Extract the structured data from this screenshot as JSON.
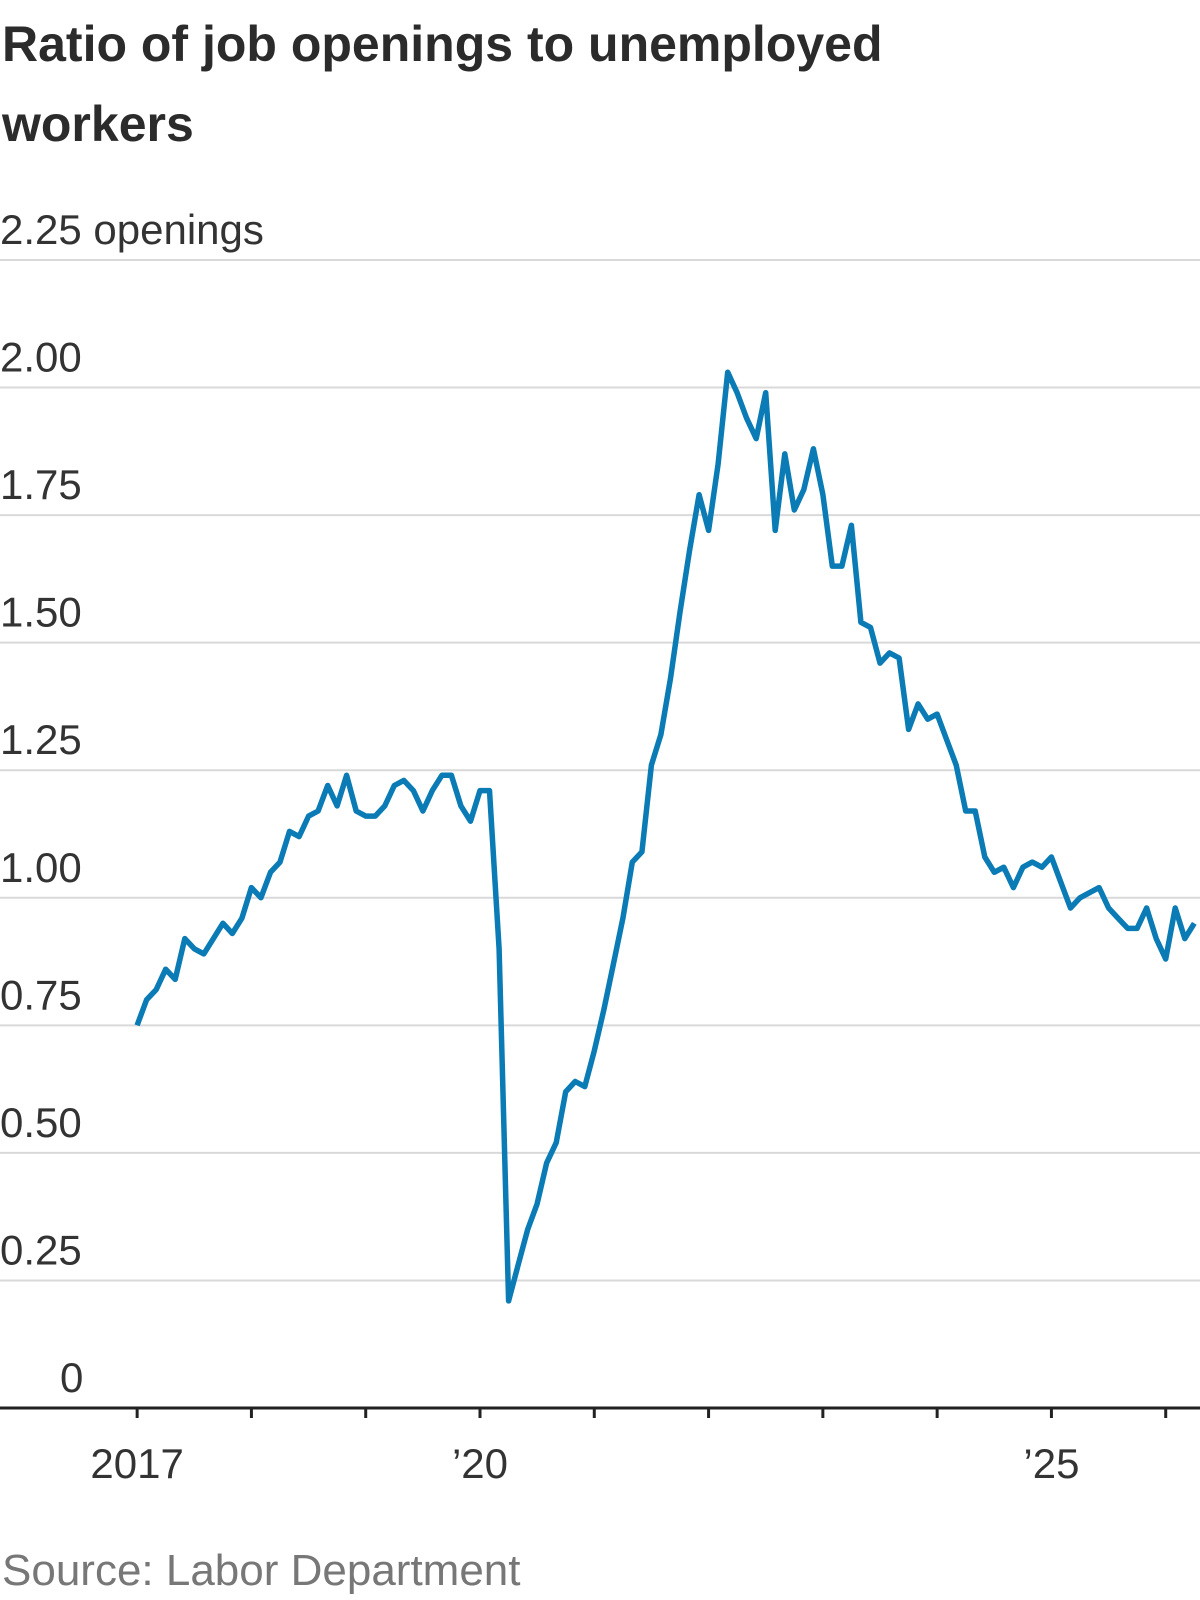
{
  "chart_data": {
    "type": "line",
    "title": "Ratio of job openings to unemployed workers",
    "source": "Source: Labor Department",
    "x": [
      2017,
      2017.083,
      2017.167,
      2017.25,
      2017.333,
      2017.417,
      2017.5,
      2017.583,
      2017.667,
      2017.75,
      2017.833,
      2017.917,
      2018,
      2018.083,
      2018.167,
      2018.25,
      2018.333,
      2018.417,
      2018.5,
      2018.583,
      2018.667,
      2018.75,
      2018.833,
      2018.917,
      2019,
      2019.083,
      2019.167,
      2019.25,
      2019.333,
      2019.417,
      2019.5,
      2019.583,
      2019.667,
      2019.75,
      2019.833,
      2019.917,
      2020,
      2020.083,
      2020.167,
      2020.25,
      2020.333,
      2020.417,
      2020.5,
      2020.583,
      2020.667,
      2020.75,
      2020.833,
      2020.917,
      2021,
      2021.083,
      2021.167,
      2021.25,
      2021.333,
      2021.417,
      2021.5,
      2021.583,
      2021.667,
      2021.75,
      2021.833,
      2021.917,
      2022,
      2022.083,
      2022.167,
      2022.25,
      2022.333,
      2022.417,
      2022.5,
      2022.583,
      2022.667,
      2022.75,
      2022.833,
      2022.917,
      2023,
      2023.083,
      2023.167,
      2023.25,
      2023.333,
      2023.417,
      2023.5,
      2023.583,
      2023.667,
      2023.75,
      2023.833,
      2023.917,
      2024,
      2024.083,
      2024.167,
      2024.25,
      2024.333,
      2024.417,
      2024.5,
      2024.583,
      2024.667,
      2024.75,
      2024.833,
      2024.917,
      2025,
      2025.083,
      2025.167,
      2025.25,
      2025.333,
      2025.417,
      2025.5,
      2025.583,
      2025.667,
      2025.75,
      2025.833,
      2025.917,
      2026,
      2026.083,
      2026.167,
      2026.25
    ],
    "series": [
      {
        "color": "#0a7bb5",
        "values": [
          0.75,
          0.8,
          0.82,
          0.86,
          0.84,
          0.92,
          0.9,
          0.89,
          0.92,
          0.95,
          0.93,
          0.96,
          1.02,
          1.0,
          1.05,
          1.07,
          1.13,
          1.12,
          1.16,
          1.17,
          1.22,
          1.18,
          1.24,
          1.17,
          1.16,
          1.16,
          1.18,
          1.22,
          1.23,
          1.21,
          1.17,
          1.21,
          1.24,
          1.24,
          1.18,
          1.15,
          1.21,
          1.21,
          0.9,
          0.21,
          0.28,
          0.35,
          0.4,
          0.48,
          0.52,
          0.62,
          0.64,
          0.63,
          0.7,
          0.78,
          0.87,
          0.96,
          1.07,
          1.09,
          1.26,
          1.32,
          1.43,
          1.56,
          1.68,
          1.79,
          1.72,
          1.85,
          2.03,
          1.99,
          1.94,
          1.9,
          1.99,
          1.72,
          1.87,
          1.76,
          1.8,
          1.88,
          1.79,
          1.65,
          1.65,
          1.73,
          1.54,
          1.53,
          1.46,
          1.48,
          1.47,
          1.33,
          1.38,
          1.35,
          1.36,
          1.31,
          1.26,
          1.17,
          1.17,
          1.08,
          1.05,
          1.06,
          1.02,
          1.06,
          1.07,
          1.06,
          1.08,
          1.03,
          0.98,
          1.0,
          1.01,
          1.02,
          0.98,
          0.96,
          0.94,
          0.94,
          0.98,
          0.92,
          0.88,
          0.98,
          0.92,
          0.95
        ]
      }
    ],
    "xlim": [
      2015.8,
      2026.3
    ],
    "xticks": [
      2017,
      {
        "value": 2020,
        "label": "’20"
      },
      {
        "value": 2025,
        "label": "’25"
      }
    ],
    "xminor_ticks": [
      2018,
      2019,
      2021,
      2022,
      2023,
      2024,
      2026
    ],
    "ylim": [
      0,
      2.25
    ],
    "yticks": [
      0,
      0.25,
      {
        "value": 0.5,
        "label": "0.50"
      },
      0.75,
      {
        "value": 1,
        "label": "1.00"
      },
      1.25,
      {
        "value": 1.5,
        "label": "1.50"
      },
      1.75,
      {
        "value": 2,
        "label": "2.00"
      },
      {
        "value": 2.25,
        "label": "2.25 openings"
      }
    ],
    "grid": true
  }
}
